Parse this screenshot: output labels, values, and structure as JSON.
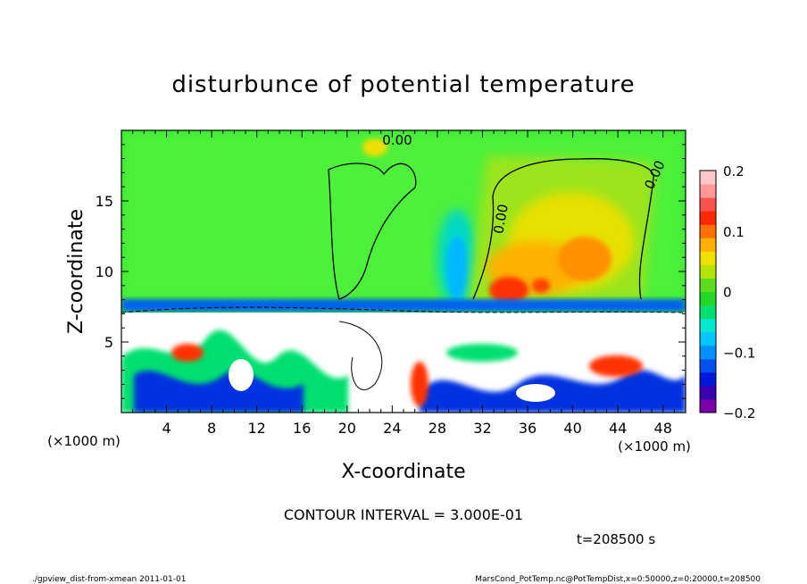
{
  "chart_data": {
    "type": "heatmap",
    "title": "disturbunce of potential temperature",
    "xlabel": "X-coordinate",
    "ylabel": "Z-coordinate",
    "x_unit_label": "(×1000 m)",
    "y_unit_label": "(×1000 m)",
    "xlim": [
      0,
      50
    ],
    "ylim": [
      0,
      20
    ],
    "x_ticks": [
      4,
      8,
      12,
      16,
      20,
      24,
      28,
      32,
      36,
      40,
      44,
      48
    ],
    "y_ticks": [
      5,
      10,
      15
    ],
    "colorbar": {
      "range": [
        -0.2,
        0.2
      ],
      "tick_labels": [
        "0.2",
        "0.1",
        "0",
        "−0.1",
        "−0.2"
      ],
      "tick_values": [
        0.2,
        0.1,
        0,
        -0.1,
        -0.2
      ],
      "colors": [
        "#7a00a8",
        "#3a00b0",
        "#0018d8",
        "#0050f0",
        "#0090ff",
        "#00c8ff",
        "#00e8d0",
        "#00e070",
        "#22d822",
        "#5cdc1a",
        "#b4e400",
        "#f0e000",
        "#ffb000",
        "#ff7000",
        "#ff2800",
        "#ff5050",
        "#ff9898",
        "#ffc8c8"
      ]
    },
    "contour_labels": [
      "0.00",
      "0.00",
      "0.00"
    ],
    "contour_interval_text": "CONTOUR INTERVAL = 3.000E-01",
    "time_text": "t=208500 s",
    "footer_left": "./gpview_dist-from-xmean   2011-01-01",
    "footer_right": "MarsCond_PotTemp.nc@PotTempDist,x=0:50000,z=0:20000,t=208500"
  }
}
